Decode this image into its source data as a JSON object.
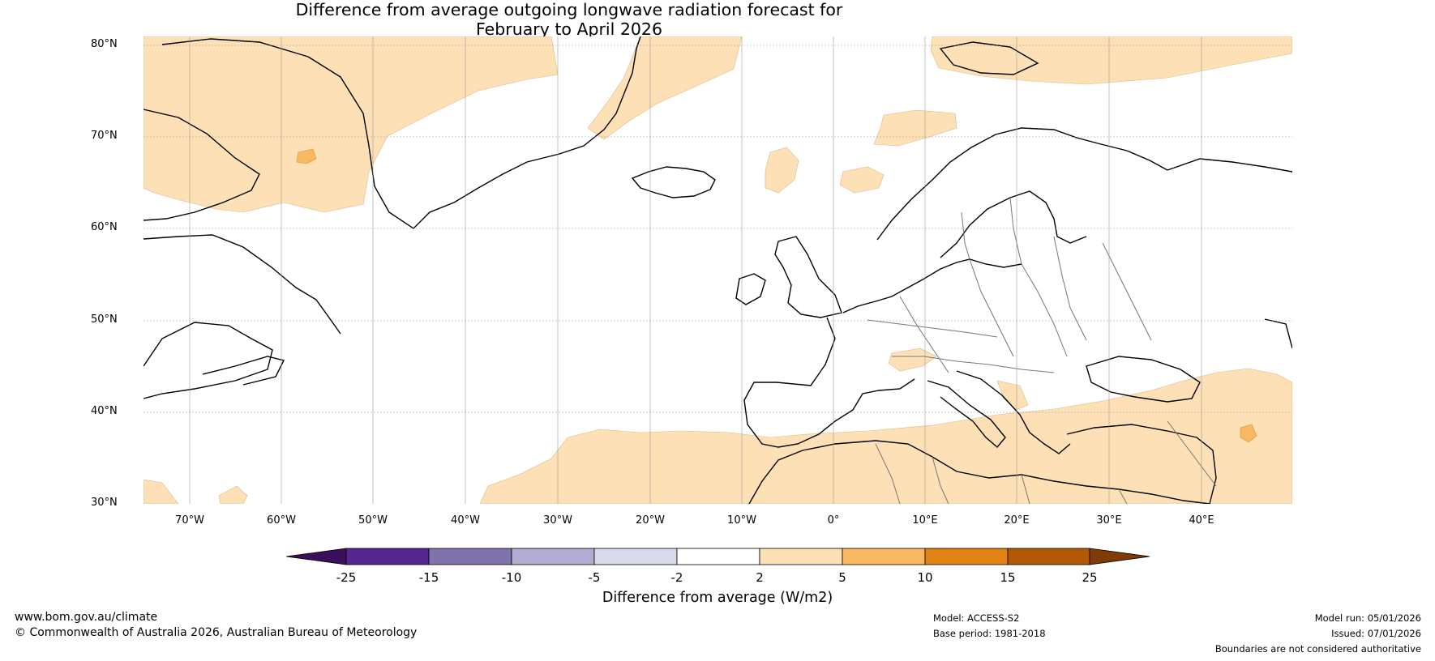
{
  "title_line1": "Difference from average outgoing longwave radiation forecast for",
  "title_line2": "February to April 2026",
  "lat_labels": [
    "80°N",
    "70°N",
    "60°N",
    "50°N",
    "40°N",
    "30°N"
  ],
  "lon_labels": [
    "70°W",
    "60°W",
    "50°W",
    "40°W",
    "30°W",
    "20°W",
    "10°W",
    "0°",
    "10°E",
    "20°E",
    "30°E",
    "40°E"
  ],
  "colorbar": {
    "ticks": [
      "-25",
      "-15",
      "-10",
      "-5",
      "-2",
      "2",
      "5",
      "10",
      "15",
      "25"
    ],
    "colors": [
      "#3b0f59",
      "#54278f",
      "#8073ac",
      "#b2abd2",
      "#d8daeb",
      "#ffffff",
      "#fde0b6",
      "#fbb862",
      "#e08214",
      "#b35806",
      "#7f3b08"
    ],
    "label": "Difference from average (W/m2)"
  },
  "footer": {
    "website": "www.bom.gov.au/climate",
    "copyright": "© Commonwealth of Australia 2026, Australian Bureau of Meteorology",
    "model": "Model: ACCESS-S2",
    "base_period": "Base period: 1981-2018",
    "model_run": "Model run: 05/01/2026",
    "issued": "Issued: 07/01/2026",
    "disclaimer": "Boundaries are not considered authoritative"
  }
}
